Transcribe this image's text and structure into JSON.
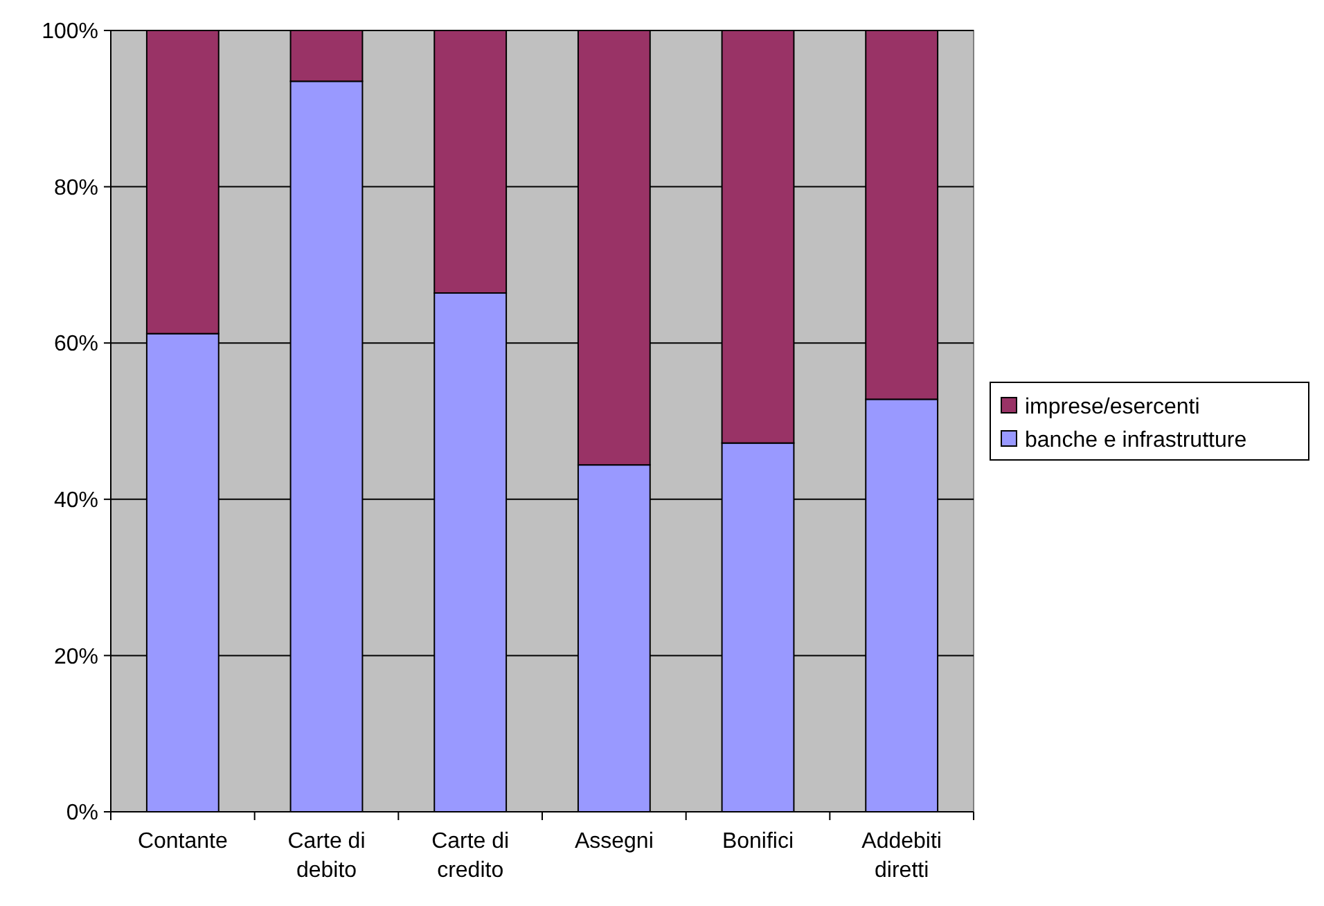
{
  "chart_data": {
    "type": "bar",
    "stacked": true,
    "categories": [
      "Contante",
      "Carte di debito",
      "Carte di credito",
      "Assegni",
      "Bonifici",
      "Addebiti diretti"
    ],
    "series": [
      {
        "name": "banche e infrastrutture",
        "color": "#9999ff",
        "values": [
          61.2,
          93.5,
          66.4,
          44.4,
          47.2,
          52.8
        ]
      },
      {
        "name": "imprese/esercenti",
        "color": "#993366",
        "values": [
          38.8,
          6.5,
          33.6,
          55.6,
          52.8,
          47.2
        ]
      }
    ],
    "ylim": [
      0,
      100
    ],
    "yticks": [
      {
        "value": 0,
        "label": "0%"
      },
      {
        "value": 20,
        "label": "20%"
      },
      {
        "value": 40,
        "label": "40%"
      },
      {
        "value": 60,
        "label": "60%"
      },
      {
        "value": 80,
        "label": "80%"
      },
      {
        "value": 100,
        "label": "100%"
      }
    ],
    "grid": "y",
    "legend": "right"
  }
}
